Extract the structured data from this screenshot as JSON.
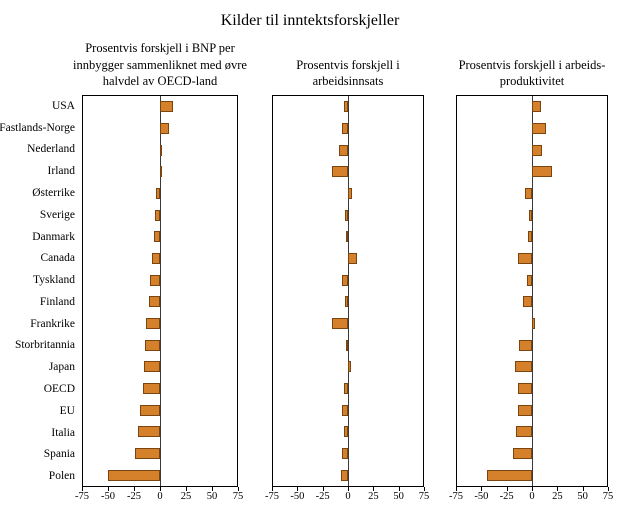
{
  "chart_data": {
    "type": "bar",
    "orientation": "horizontal",
    "title": "Kilder til inntektsforskjeller",
    "categories": [
      "USA",
      "Fastlands-Norge",
      "Nederland",
      "Irland",
      "Østerrike",
      "Sverige",
      "Danmark",
      "Canada",
      "Tyskland",
      "Finland",
      "Frankrike",
      "Storbritannia",
      "Japan",
      "OECD",
      "EU",
      "Italia",
      "Spania",
      "Polen"
    ],
    "xlim": [
      -75,
      75
    ],
    "xticks": [
      -75,
      -50,
      -25,
      0,
      25,
      50,
      75
    ],
    "bar_color": "#D5802B",
    "bar_border_color": "#7A4510",
    "grid": "off",
    "legend": "none",
    "panels": [
      {
        "title": [
          "Prosentvis forskjell i BNP per",
          "innbygger sammenliknet med øvre",
          "halvdel av OECD-land"
        ],
        "values": [
          13,
          9,
          2,
          2,
          -4,
          -5,
          -6,
          -8,
          -10,
          -11,
          -14,
          -15,
          -16,
          -17,
          -19,
          -21,
          -24,
          -51
        ]
      },
      {
        "title": [
          "Prosentvis forskjell i",
          "arbeidsinnsats"
        ],
        "values": [
          -4,
          -6,
          -9,
          -16,
          4,
          -3,
          -2,
          9,
          -6,
          -3,
          -16,
          -2,
          3,
          -4,
          -6,
          -4,
          -6,
          -7
        ]
      },
      {
        "title": [
          "Prosentvis forskjell i arbeids-",
          "produktivitet"
        ],
        "values": [
          9,
          14,
          10,
          20,
          -7,
          -3,
          -4,
          -14,
          -5,
          -9,
          3,
          -13,
          -17,
          -14,
          -14,
          -16,
          -19,
          -45
        ]
      }
    ]
  }
}
